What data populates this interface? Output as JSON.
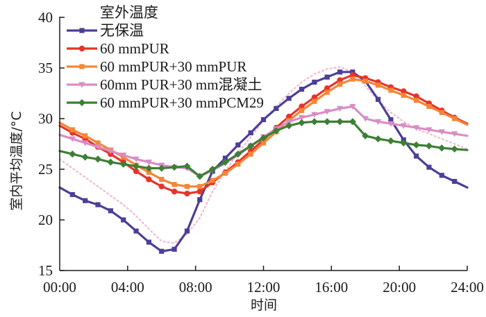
{
  "chart_data": {
    "type": "line",
    "title": "",
    "xlabel": "时间",
    "ylabel": "室内平均温度/°C",
    "xlim": [
      0,
      24
    ],
    "ylim": [
      15,
      40
    ],
    "x_ticks": [
      0,
      4,
      8,
      12,
      16,
      20,
      24
    ],
    "x_tick_labels": [
      "00:00",
      "04:00",
      "08:00",
      "12:00",
      "16:00",
      "20:00",
      "24:00"
    ],
    "y_ticks": [
      15,
      20,
      25,
      30,
      35,
      40
    ],
    "y_tick_labels": [
      "15",
      "20",
      "25",
      "30",
      "35",
      "40"
    ],
    "grid": false,
    "legend_position": "top-left",
    "x": [
      0,
      0.75,
      1.5,
      2.25,
      3,
      3.75,
      4.5,
      5.25,
      6,
      6.75,
      7.5,
      8.25,
      9,
      9.75,
      10.5,
      11.25,
      12,
      12.75,
      13.5,
      14.25,
      15,
      15.75,
      16.5,
      17.25,
      18,
      18.75,
      19.5,
      20.25,
      21,
      21.75,
      22.5,
      23.25,
      24
    ],
    "series": [
      {
        "name": "室外温度",
        "color": "#F2B8CF",
        "style": "dotted",
        "marker": "none",
        "values": [
          26.0,
          25.1,
          24.2,
          23.3,
          22.4,
          21.5,
          20.4,
          19.1,
          17.9,
          17.7,
          18.6,
          20.2,
          22.8,
          24.8,
          26.6,
          28.2,
          29.8,
          31.2,
          32.5,
          33.6,
          34.4,
          34.9,
          35.1,
          34.6,
          33.2,
          31.8,
          30.6,
          29.7,
          29.0,
          28.5,
          28.0,
          27.5,
          27.0
        ]
      },
      {
        "name": "无保温",
        "color": "#4B3F98",
        "style": "solid",
        "marker": "square",
        "values": [
          23.2,
          22.5,
          21.9,
          21.5,
          20.9,
          20.0,
          18.9,
          17.8,
          16.9,
          17.1,
          18.9,
          22.0,
          24.8,
          26.1,
          27.4,
          28.6,
          29.9,
          31.0,
          32.0,
          32.9,
          33.6,
          34.1,
          34.6,
          34.6,
          33.7,
          31.9,
          29.9,
          27.9,
          26.3,
          25.2,
          24.4,
          23.8,
          23.2
        ]
      },
      {
        "name": "60 mmPUR",
        "color": "#E8332A",
        "style": "solid",
        "marker": "circle",
        "values": [
          29.3,
          28.6,
          28.0,
          27.2,
          26.5,
          25.7,
          24.8,
          24.0,
          23.3,
          22.8,
          22.6,
          22.8,
          23.7,
          24.7,
          25.7,
          26.8,
          27.9,
          29.1,
          30.2,
          31.2,
          32.1,
          33.0,
          33.8,
          34.3,
          34.0,
          33.6,
          33.1,
          32.7,
          32.2,
          31.5,
          30.8,
          30.1,
          29.5
        ]
      },
      {
        "name": "60 mmPUR+30 mmPUR",
        "color": "#F58634",
        "style": "solid",
        "marker": "square",
        "values": [
          29.6,
          28.9,
          28.3,
          27.6,
          26.9,
          26.2,
          25.4,
          24.7,
          24.0,
          23.5,
          23.3,
          23.3,
          23.9,
          24.6,
          25.5,
          26.5,
          27.6,
          28.7,
          29.8,
          30.8,
          31.7,
          32.6,
          33.4,
          33.9,
          33.7,
          33.3,
          32.8,
          32.3,
          31.8,
          31.2,
          30.6,
          30.0,
          29.4
        ]
      },
      {
        "name": "60mm PUR+30 mm混凝土",
        "color": "#D88DC4",
        "style": "solid",
        "marker": "triangle-down",
        "values": [
          28.4,
          28.0,
          27.6,
          27.2,
          26.8,
          26.4,
          26.0,
          25.7,
          25.4,
          25.2,
          25.1,
          24.3,
          24.9,
          25.6,
          26.4,
          27.3,
          28.2,
          29.0,
          29.7,
          30.1,
          30.4,
          30.7,
          31.0,
          31.2,
          30.0,
          29.7,
          29.5,
          29.3,
          29.1,
          28.9,
          28.7,
          28.5,
          28.3
        ]
      },
      {
        "name": "60 mmPUR+30 mmPCM29",
        "color": "#3C7F35",
        "style": "solid",
        "marker": "diamond",
        "values": [
          26.8,
          26.5,
          26.2,
          26.0,
          25.7,
          25.5,
          25.3,
          25.1,
          25.1,
          25.2,
          25.3,
          24.3,
          25.0,
          25.7,
          26.5,
          27.3,
          28.1,
          28.8,
          29.3,
          29.6,
          29.7,
          29.7,
          29.7,
          29.7,
          28.3,
          28.0,
          27.8,
          27.6,
          27.4,
          27.3,
          27.1,
          27.0,
          26.9
        ]
      }
    ]
  }
}
